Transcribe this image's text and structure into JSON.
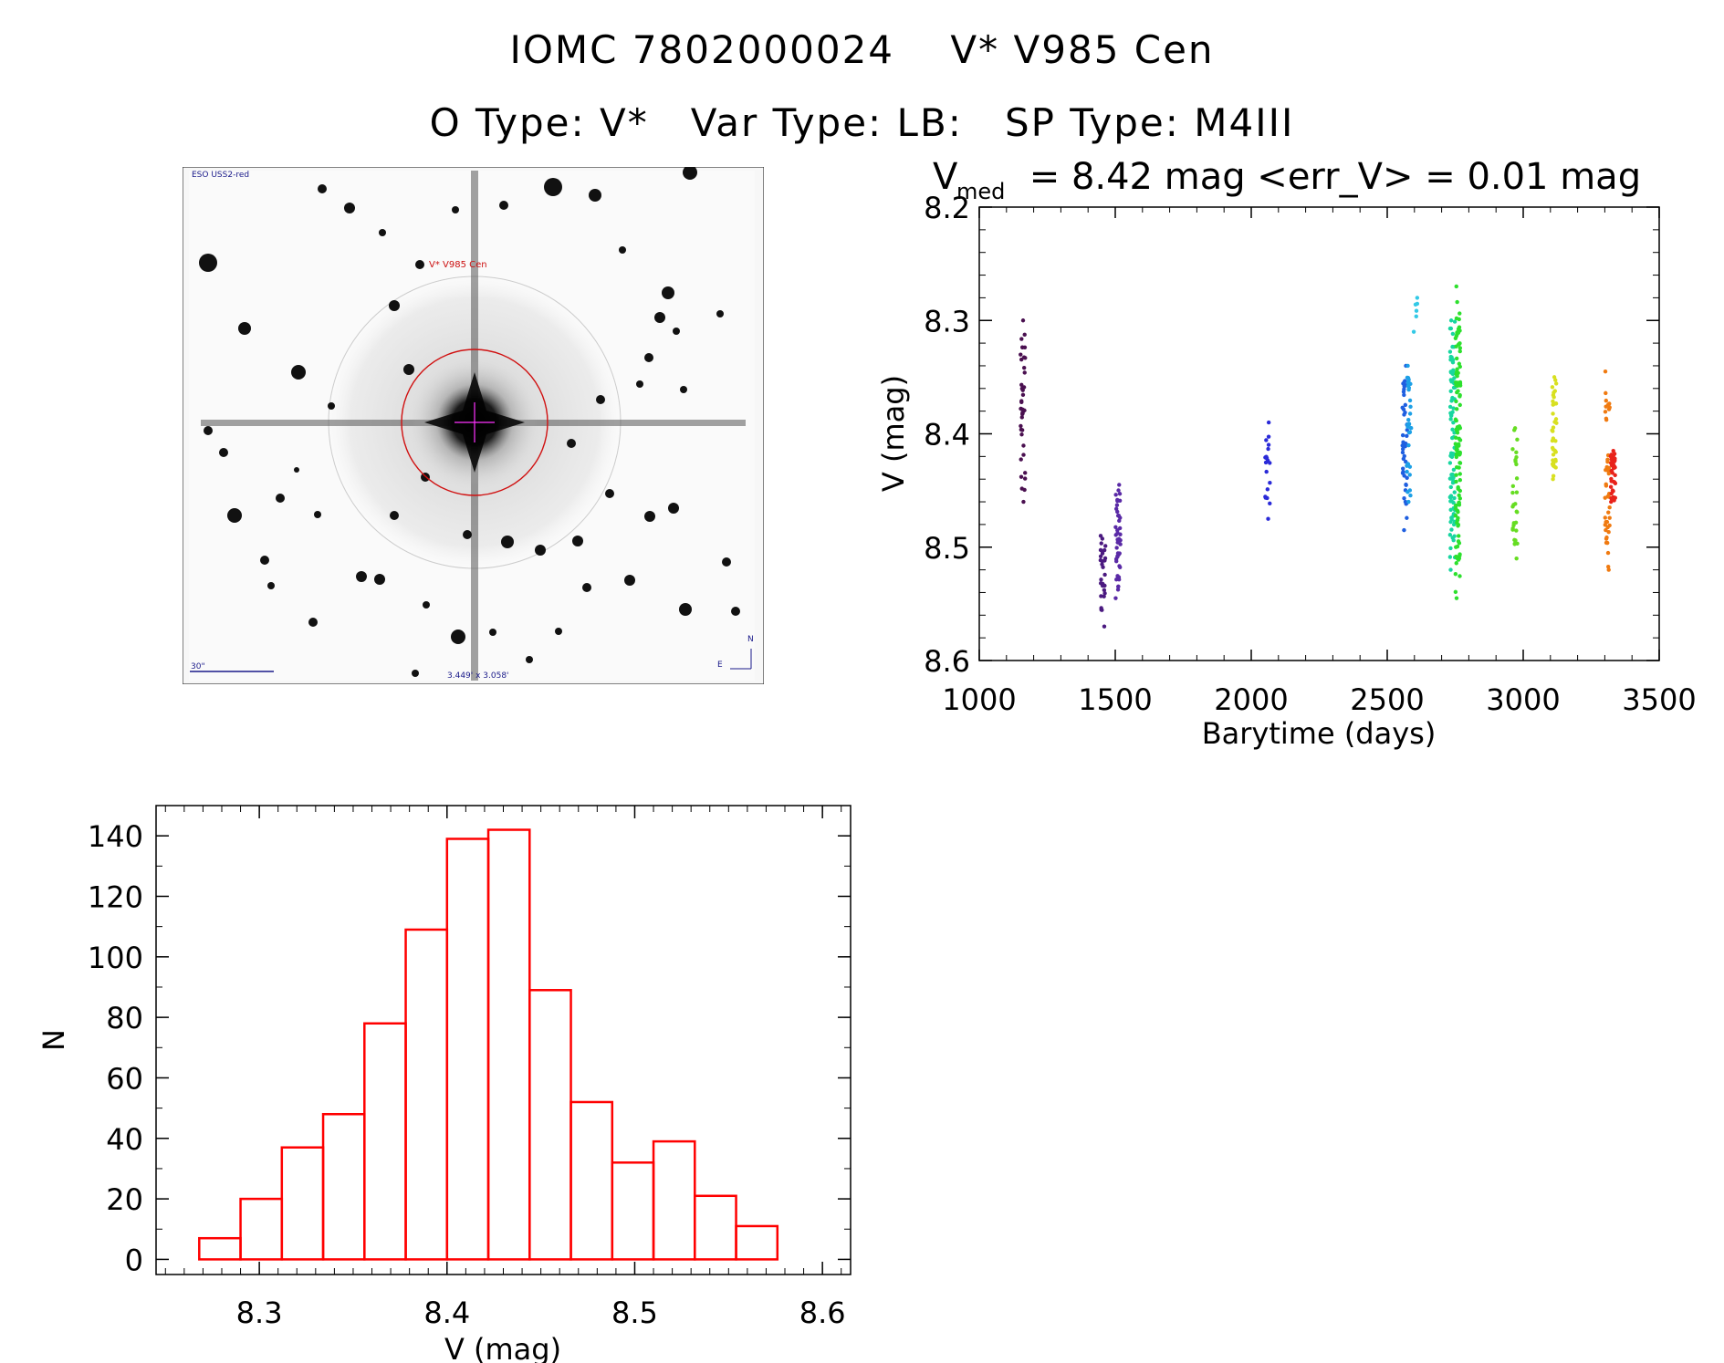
{
  "header": {
    "line1": "IOMC 7802000024    V* V985 Cen",
    "line2": "O Type: V*   Var Type: LB:   SP Type: M4III"
  },
  "thumbnail": {
    "survey_label": "ESO USS2-red",
    "object_label": "V* V985 Cen",
    "scale_label": "30\"",
    "fov_label": "3.449' x 3.058'",
    "north_label": "N",
    "east_label": "E"
  },
  "chart_data": [
    {
      "type": "scatter",
      "title_prefix": "V",
      "title_sub": "med",
      "title_rest": " = 8.42 mag <err_V> = 0.01 mag",
      "xlabel": "Barytime (days)",
      "ylabel": "V (mag)",
      "xlim": [
        1000,
        3500
      ],
      "ylim": [
        8.6,
        8.2
      ],
      "xticks": [
        1000,
        1500,
        2000,
        2500,
        3000,
        3500
      ],
      "yticks": [
        8.2,
        8.3,
        8.4,
        8.5,
        8.6
      ],
      "grid": false,
      "groups": [
        {
          "x": 1160,
          "vmin": 8.3,
          "vmax": 8.46,
          "n": 40,
          "color": "#4a1050"
        },
        {
          "x": 1455,
          "vmin": 8.49,
          "vmax": 8.57,
          "n": 30,
          "color": "#4b1a80"
        },
        {
          "x": 1510,
          "vmin": 8.445,
          "vmax": 8.545,
          "n": 45,
          "color": "#5a2aa6"
        },
        {
          "x": 2060,
          "vmin": 8.39,
          "vmax": 8.475,
          "n": 20,
          "color": "#2a2ad8"
        },
        {
          "x": 2565,
          "vmin": 8.34,
          "vmax": 8.485,
          "n": 45,
          "color": "#1f5fe0"
        },
        {
          "x": 2580,
          "vmin": 8.34,
          "vmax": 8.46,
          "n": 35,
          "color": "#1da0e6"
        },
        {
          "x": 2605,
          "vmin": 8.28,
          "vmax": 8.31,
          "n": 6,
          "color": "#33c9e6"
        },
        {
          "x": 2740,
          "vmin": 8.3,
          "vmax": 8.52,
          "n": 90,
          "color": "#18d6a0"
        },
        {
          "x": 2760,
          "vmin": 8.27,
          "vmax": 8.545,
          "n": 110,
          "color": "#2de02d"
        },
        {
          "x": 2970,
          "vmin": 8.395,
          "vmax": 8.51,
          "n": 30,
          "color": "#66dd22"
        },
        {
          "x": 3115,
          "vmin": 8.35,
          "vmax": 8.44,
          "n": 40,
          "color": "#d8e020"
        },
        {
          "x": 3310,
          "vmin": 8.345,
          "vmax": 8.52,
          "n": 45,
          "color": "#f07a10"
        },
        {
          "x": 3330,
          "vmin": 8.415,
          "vmax": 8.46,
          "n": 40,
          "color": "#e8221a"
        }
      ]
    },
    {
      "type": "bar",
      "subtype": "histogram",
      "xlabel": "V (mag)",
      "ylabel": "N",
      "xlim": [
        8.245,
        8.615
      ],
      "ylim": [
        -5,
        150
      ],
      "xticks": [
        8.3,
        8.4,
        8.5,
        8.6
      ],
      "yticks": [
        0,
        20,
        40,
        60,
        80,
        100,
        120,
        140
      ],
      "bin_edges": [
        8.268,
        8.29,
        8.312,
        8.334,
        8.356,
        8.378,
        8.4,
        8.422,
        8.444,
        8.466,
        8.488,
        8.51,
        8.532,
        8.554,
        8.576
      ],
      "counts": [
        7,
        20,
        37,
        48,
        78,
        109,
        139,
        142,
        89,
        52,
        32,
        39,
        21,
        11
      ],
      "bar_color": "#ff0000"
    }
  ]
}
